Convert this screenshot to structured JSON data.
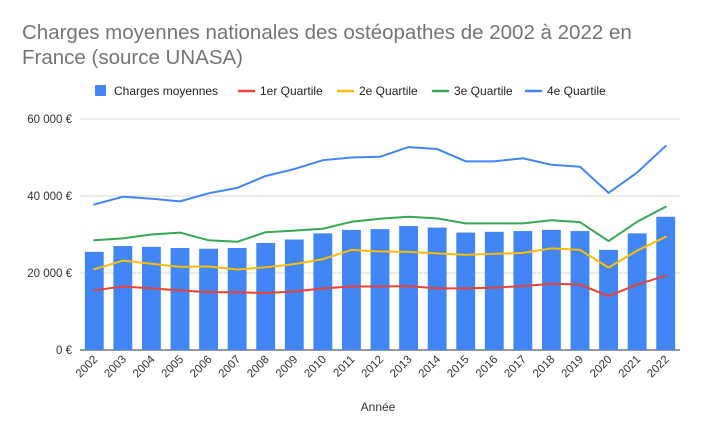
{
  "chart_data": {
    "type": "bar",
    "title": "Charges moyennes nationales des ostéopathes de 2002 à 2022 en France (source UNASA)",
    "xlabel": "Année",
    "ylabel": "",
    "ylim": [
      0,
      60000
    ],
    "yticks": [
      0,
      20000,
      40000,
      60000
    ],
    "ytick_labels": [
      "0 €",
      "20 000 €",
      "40 000 €",
      "60 000 €"
    ],
    "grid": true,
    "legend_position": "top",
    "categories": [
      "2002",
      "2003",
      "2004",
      "2005",
      "2006",
      "2007",
      "2008",
      "2009",
      "2010",
      "2011",
      "2012",
      "2013",
      "2014",
      "2015",
      "2016",
      "2017",
      "2018",
      "2019",
      "2020",
      "2021",
      "2022"
    ],
    "series": [
      {
        "name": "Charges moyennes",
        "kind": "bar",
        "color": "#4285f4",
        "values": [
          25500,
          27000,
          26800,
          26500,
          26300,
          26500,
          27800,
          28700,
          30300,
          31200,
          31400,
          32200,
          31800,
          30500,
          30700,
          30900,
          31200,
          30900,
          26000,
          30300,
          34600
        ]
      },
      {
        "name": "1er Quartile",
        "kind": "line",
        "color": "#ea4335",
        "values": [
          15500,
          16500,
          16000,
          15500,
          15000,
          15000,
          14800,
          15200,
          16000,
          16500,
          16500,
          16600,
          16000,
          16000,
          16200,
          16600,
          17200,
          17000,
          14000,
          17000,
          19300
        ]
      },
      {
        "name": "2e Quartile",
        "kind": "line",
        "color": "#fbbc04",
        "values": [
          21000,
          23200,
          22400,
          21600,
          21700,
          20900,
          21500,
          22300,
          23600,
          26000,
          25600,
          25500,
          25100,
          24700,
          25000,
          25200,
          26400,
          26000,
          21400,
          25800,
          29400
        ]
      },
      {
        "name": "3e Quartile",
        "kind": "line",
        "color": "#34a853",
        "values": [
          28500,
          29000,
          30000,
          30500,
          28500,
          28100,
          30600,
          31000,
          31500,
          33300,
          34100,
          34600,
          34200,
          32900,
          32900,
          32900,
          33700,
          33200,
          28300,
          33300,
          37200
        ]
      },
      {
        "name": "4e Quartile",
        "kind": "line",
        "color": "#4285f4",
        "values": [
          37800,
          39800,
          39300,
          38600,
          40700,
          42100,
          45200,
          47000,
          49300,
          50000,
          50200,
          52700,
          52200,
          49000,
          49000,
          49800,
          48100,
          47600,
          40800,
          46100,
          53000
        ]
      }
    ]
  }
}
